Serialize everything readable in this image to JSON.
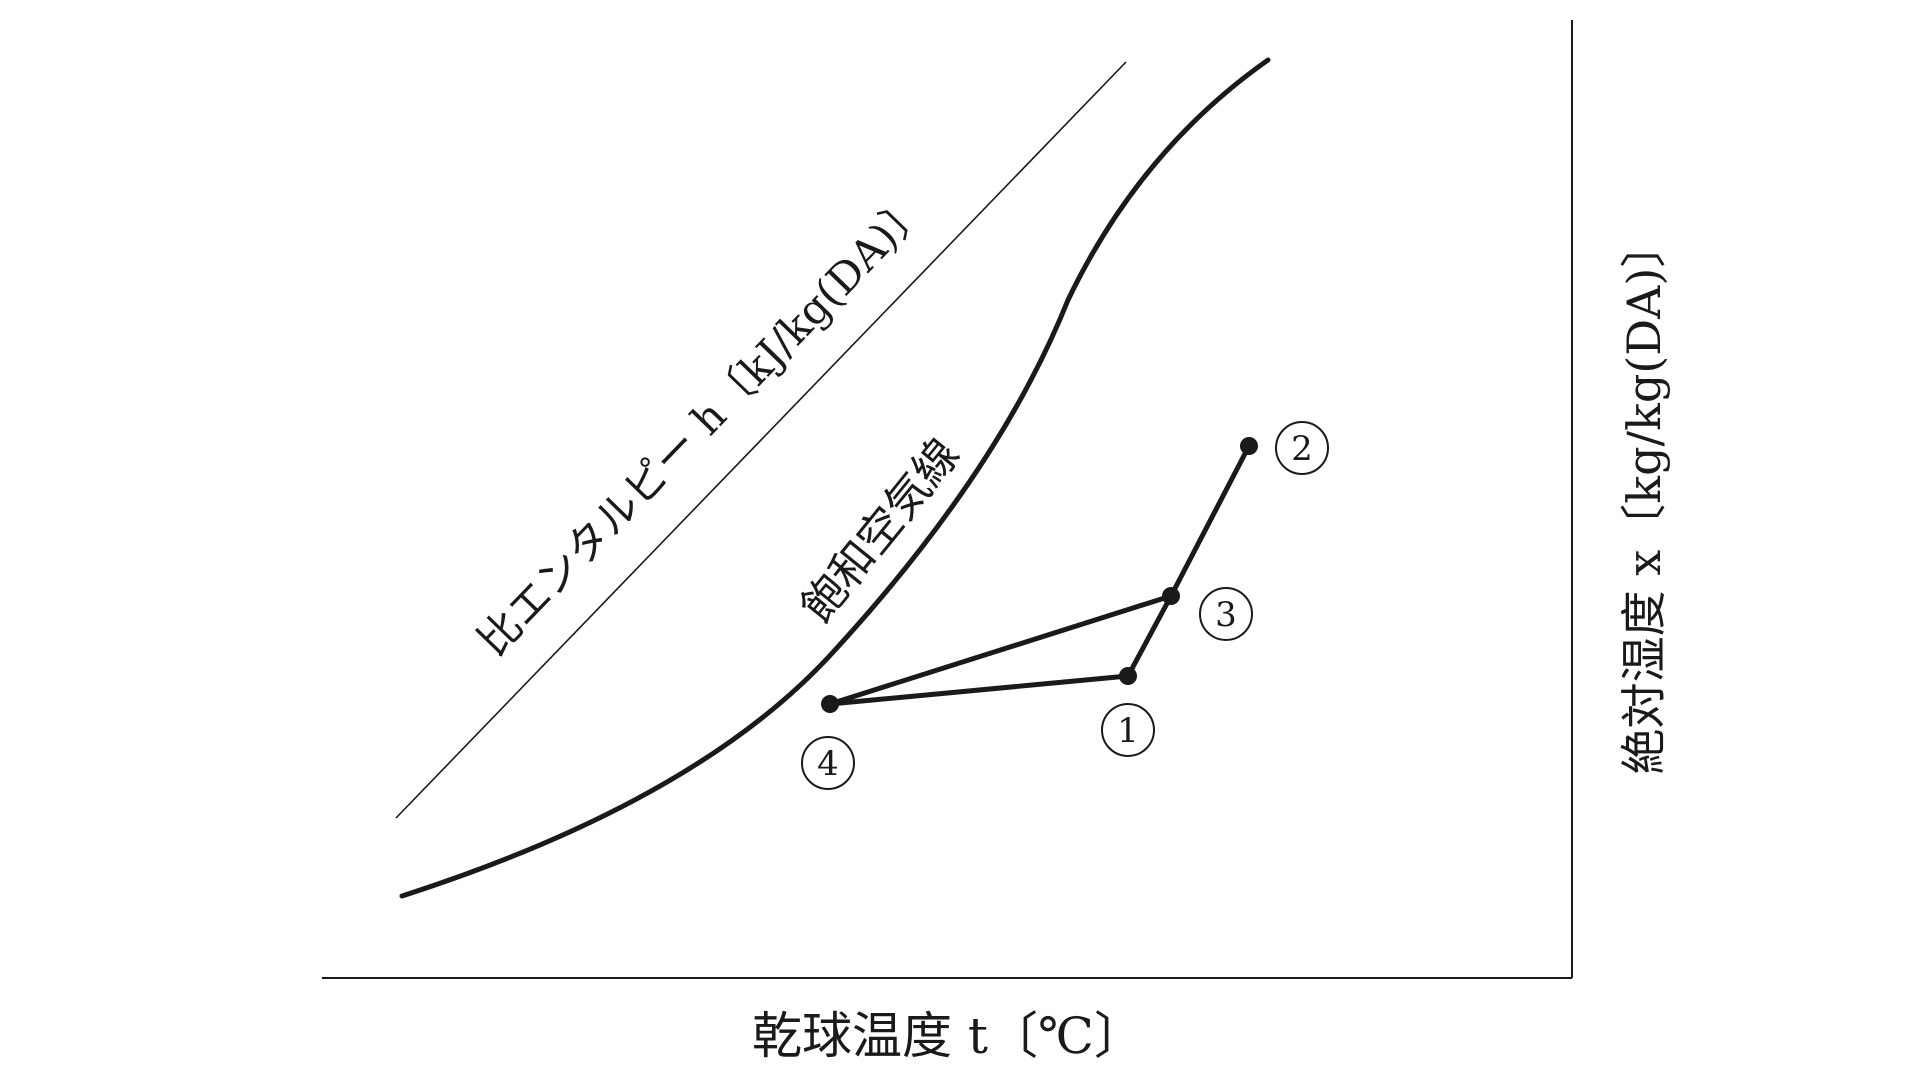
{
  "diagram": {
    "x_axis_label": "乾球温度 t〔℃〕",
    "y_axis_label": "絶対湿度 x〔kg/kg(DA)〕",
    "enthalpy_label": "比エンタルピー h〔kJ/kg(DA)〕",
    "saturation_label": "飽和空気線",
    "points": [
      {
        "id": "p1",
        "label": "1"
      },
      {
        "id": "p2",
        "label": "2"
      },
      {
        "id": "p3",
        "label": "3"
      },
      {
        "id": "p4",
        "label": "4"
      }
    ],
    "process_path": [
      "4",
      "1",
      "3",
      "2"
    ],
    "extra_segment": [
      "3",
      "4"
    ]
  }
}
